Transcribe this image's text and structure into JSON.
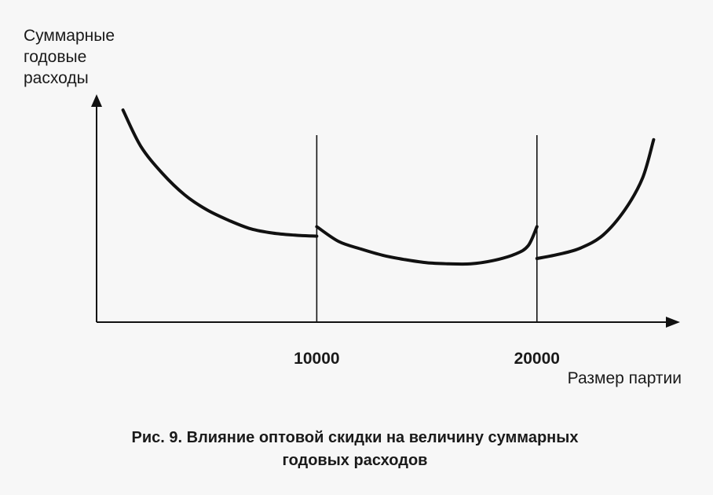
{
  "chart_data": {
    "type": "line",
    "title": "",
    "ylabel_lines": [
      "Суммарные",
      "годовые",
      "расходы"
    ],
    "xlabel": "Размер партии",
    "xticks": [
      10000,
      20000
    ],
    "xtick_labels": [
      "10000",
      "20000"
    ],
    "xlim": [
      0,
      26000
    ],
    "ylim": [
      0,
      100
    ],
    "y_axis_values_shown": false,
    "grid": false,
    "breakpoints": [
      10000,
      20000
    ],
    "series": [
      {
        "segment": 1,
        "x": [
          1200,
          2000,
          3000,
          4000,
          5000,
          6000,
          7000,
          8000,
          9000,
          10000
        ],
        "y": [
          100,
          83,
          70,
          60,
          53,
          48,
          44,
          42,
          41,
          40.5
        ]
      },
      {
        "segment": 2,
        "x": [
          10000,
          11000,
          12000,
          13000,
          14000,
          15000,
          16000,
          17000,
          18000,
          19000,
          19600,
          20000
        ],
        "y": [
          45,
          38,
          34.5,
          31.5,
          29.5,
          28,
          27.5,
          27.5,
          29,
          32,
          36,
          45
        ]
      },
      {
        "segment": 3,
        "x": [
          20000,
          21000,
          22000,
          23000,
          24000,
          24800,
          25300
        ],
        "y": [
          30,
          32,
          35,
          41,
          53,
          68,
          86
        ]
      }
    ]
  },
  "caption": {
    "prefix": "Рис. 9.",
    "line1": " Влияние оптовой скидки на величину суммарных",
    "line2": "годовых расходов"
  }
}
